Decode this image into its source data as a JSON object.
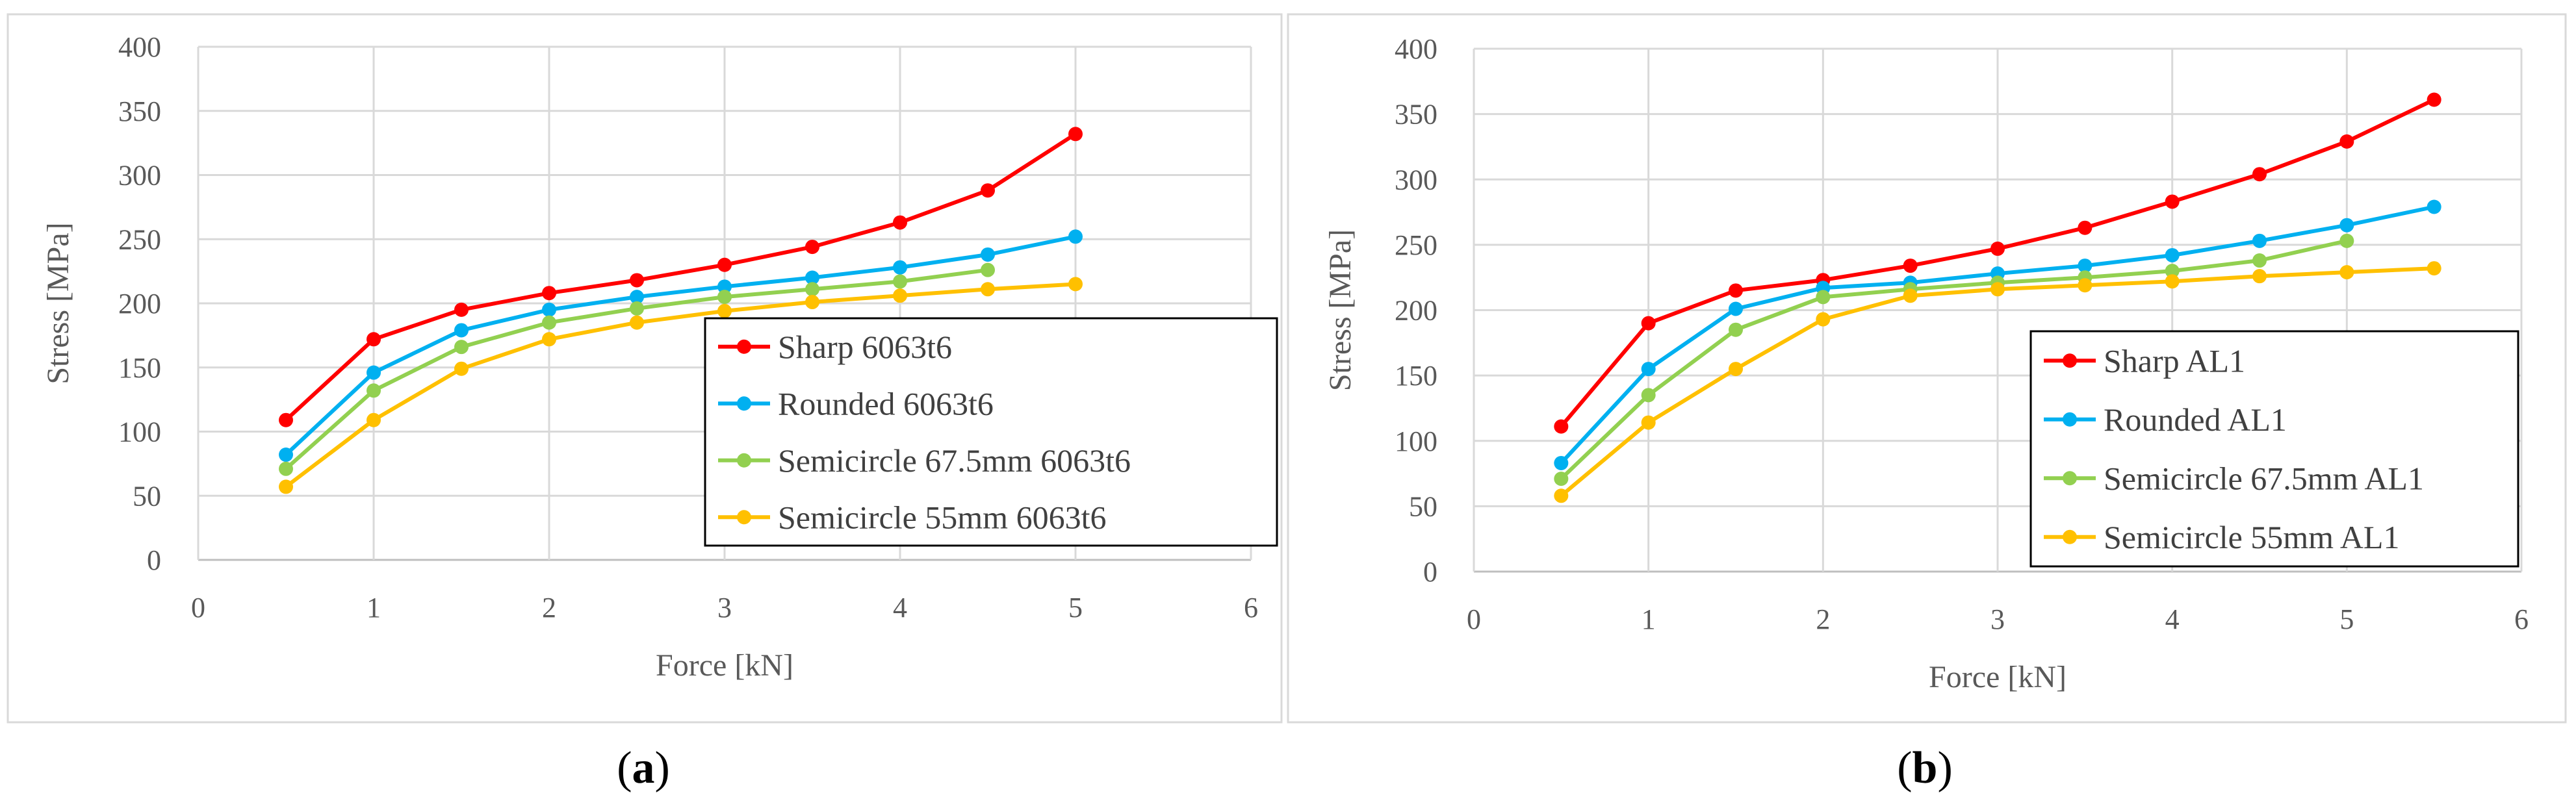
{
  "figure": {
    "panels": [
      {
        "caption": {
          "open": "(",
          "letter": "a",
          "close": ")"
        },
        "legend": [
          "Sharp 6063t6",
          "Rounded 6063t6",
          "Semicircle 67.5mm 6063t6",
          "Semicircle 55mm 6063t6"
        ]
      },
      {
        "caption": {
          "open": "(",
          "letter": "b",
          "close": ")"
        },
        "legend": [
          "Sharp AL1",
          "Rounded AL1",
          "Semicircle 67.5mm AL1",
          "Semicircle 55mm AL1"
        ]
      }
    ]
  },
  "chart_data": [
    {
      "type": "line",
      "title": "",
      "caption": "(a)",
      "xlabel": "Force [kN]",
      "ylabel": "Stress [MPa]",
      "xlim": [
        0,
        6
      ],
      "ylim": [
        0,
        400
      ],
      "xticks": [
        0,
        1,
        2,
        3,
        4,
        5,
        6
      ],
      "yticks": [
        0,
        50,
        100,
        150,
        200,
        250,
        300,
        350,
        400
      ],
      "grid": true,
      "legend_position": "center-right",
      "series": [
        {
          "name": "Sharp 6063t6",
          "color": "#ff0000",
          "x": [
            0.5,
            1,
            1.5,
            2,
            2.5,
            3,
            3.5,
            4,
            4.5,
            5
          ],
          "y": [
            109,
            172,
            195,
            208,
            218,
            230,
            244,
            263,
            288,
            332
          ]
        },
        {
          "name": "Rounded 6063t6",
          "color": "#00b0f0",
          "x": [
            0.5,
            1,
            1.5,
            2,
            2.5,
            3,
            3.5,
            4,
            4.5,
            5
          ],
          "y": [
            82,
            146,
            179,
            195,
            205,
            213,
            220,
            228,
            238,
            252
          ]
        },
        {
          "name": "Semicircle 67.5mm 6063t6",
          "color": "#92d050",
          "x": [
            0.5,
            1,
            1.5,
            2,
            2.5,
            3,
            3.5,
            4,
            4.5
          ],
          "y": [
            71,
            132,
            166,
            185,
            196,
            205,
            211,
            217,
            226
          ]
        },
        {
          "name": "Semicircle 55mm 6063t6",
          "color": "#ffc000",
          "x": [
            0.5,
            1,
            1.5,
            2,
            2.5,
            3,
            3.5,
            4,
            4.5,
            5
          ],
          "y": [
            57,
            109,
            149,
            172,
            185,
            194,
            201,
            206,
            211,
            215
          ]
        }
      ]
    },
    {
      "type": "line",
      "title": "",
      "caption": "(b)",
      "xlabel": "Force [kN]",
      "ylabel": "Stress [MPa]",
      "xlim": [
        0,
        6
      ],
      "ylim": [
        0,
        400
      ],
      "xticks": [
        0,
        1,
        2,
        3,
        4,
        5,
        6
      ],
      "yticks": [
        0,
        50,
        100,
        150,
        200,
        250,
        300,
        350,
        400
      ],
      "grid": true,
      "legend_position": "bottom-right",
      "series": [
        {
          "name": "Sharp AL1",
          "color": "#ff0000",
          "x": [
            0.5,
            1,
            1.5,
            2,
            2.5,
            3,
            3.5,
            4,
            4.5,
            5,
            5.5
          ],
          "y": [
            111,
            190,
            215,
            223,
            234,
            247,
            263,
            283,
            304,
            329,
            361
          ]
        },
        {
          "name": "Rounded AL1",
          "color": "#00b0f0",
          "x": [
            0.5,
            1,
            1.5,
            2,
            2.5,
            3,
            3.5,
            4,
            4.5,
            5,
            5.5
          ],
          "y": [
            83,
            155,
            201,
            217,
            221,
            228,
            234,
            242,
            253,
            265,
            279
          ]
        },
        {
          "name": "Semicircle 67.5mm AL1",
          "color": "#92d050",
          "x": [
            0.5,
            1,
            1.5,
            2,
            2.5,
            3,
            3.5,
            4,
            4.5,
            5
          ],
          "y": [
            71,
            135,
            185,
            210,
            216,
            221,
            225,
            230,
            238,
            253
          ]
        },
        {
          "name": "Semicircle 55mm AL1",
          "color": "#ffc000",
          "x": [
            0.5,
            1,
            1.5,
            2,
            2.5,
            3,
            3.5,
            4,
            4.5,
            5,
            5.5
          ],
          "y": [
            58,
            114,
            155,
            193,
            211,
            216,
            219,
            222,
            226,
            229,
            232
          ]
        }
      ]
    }
  ]
}
